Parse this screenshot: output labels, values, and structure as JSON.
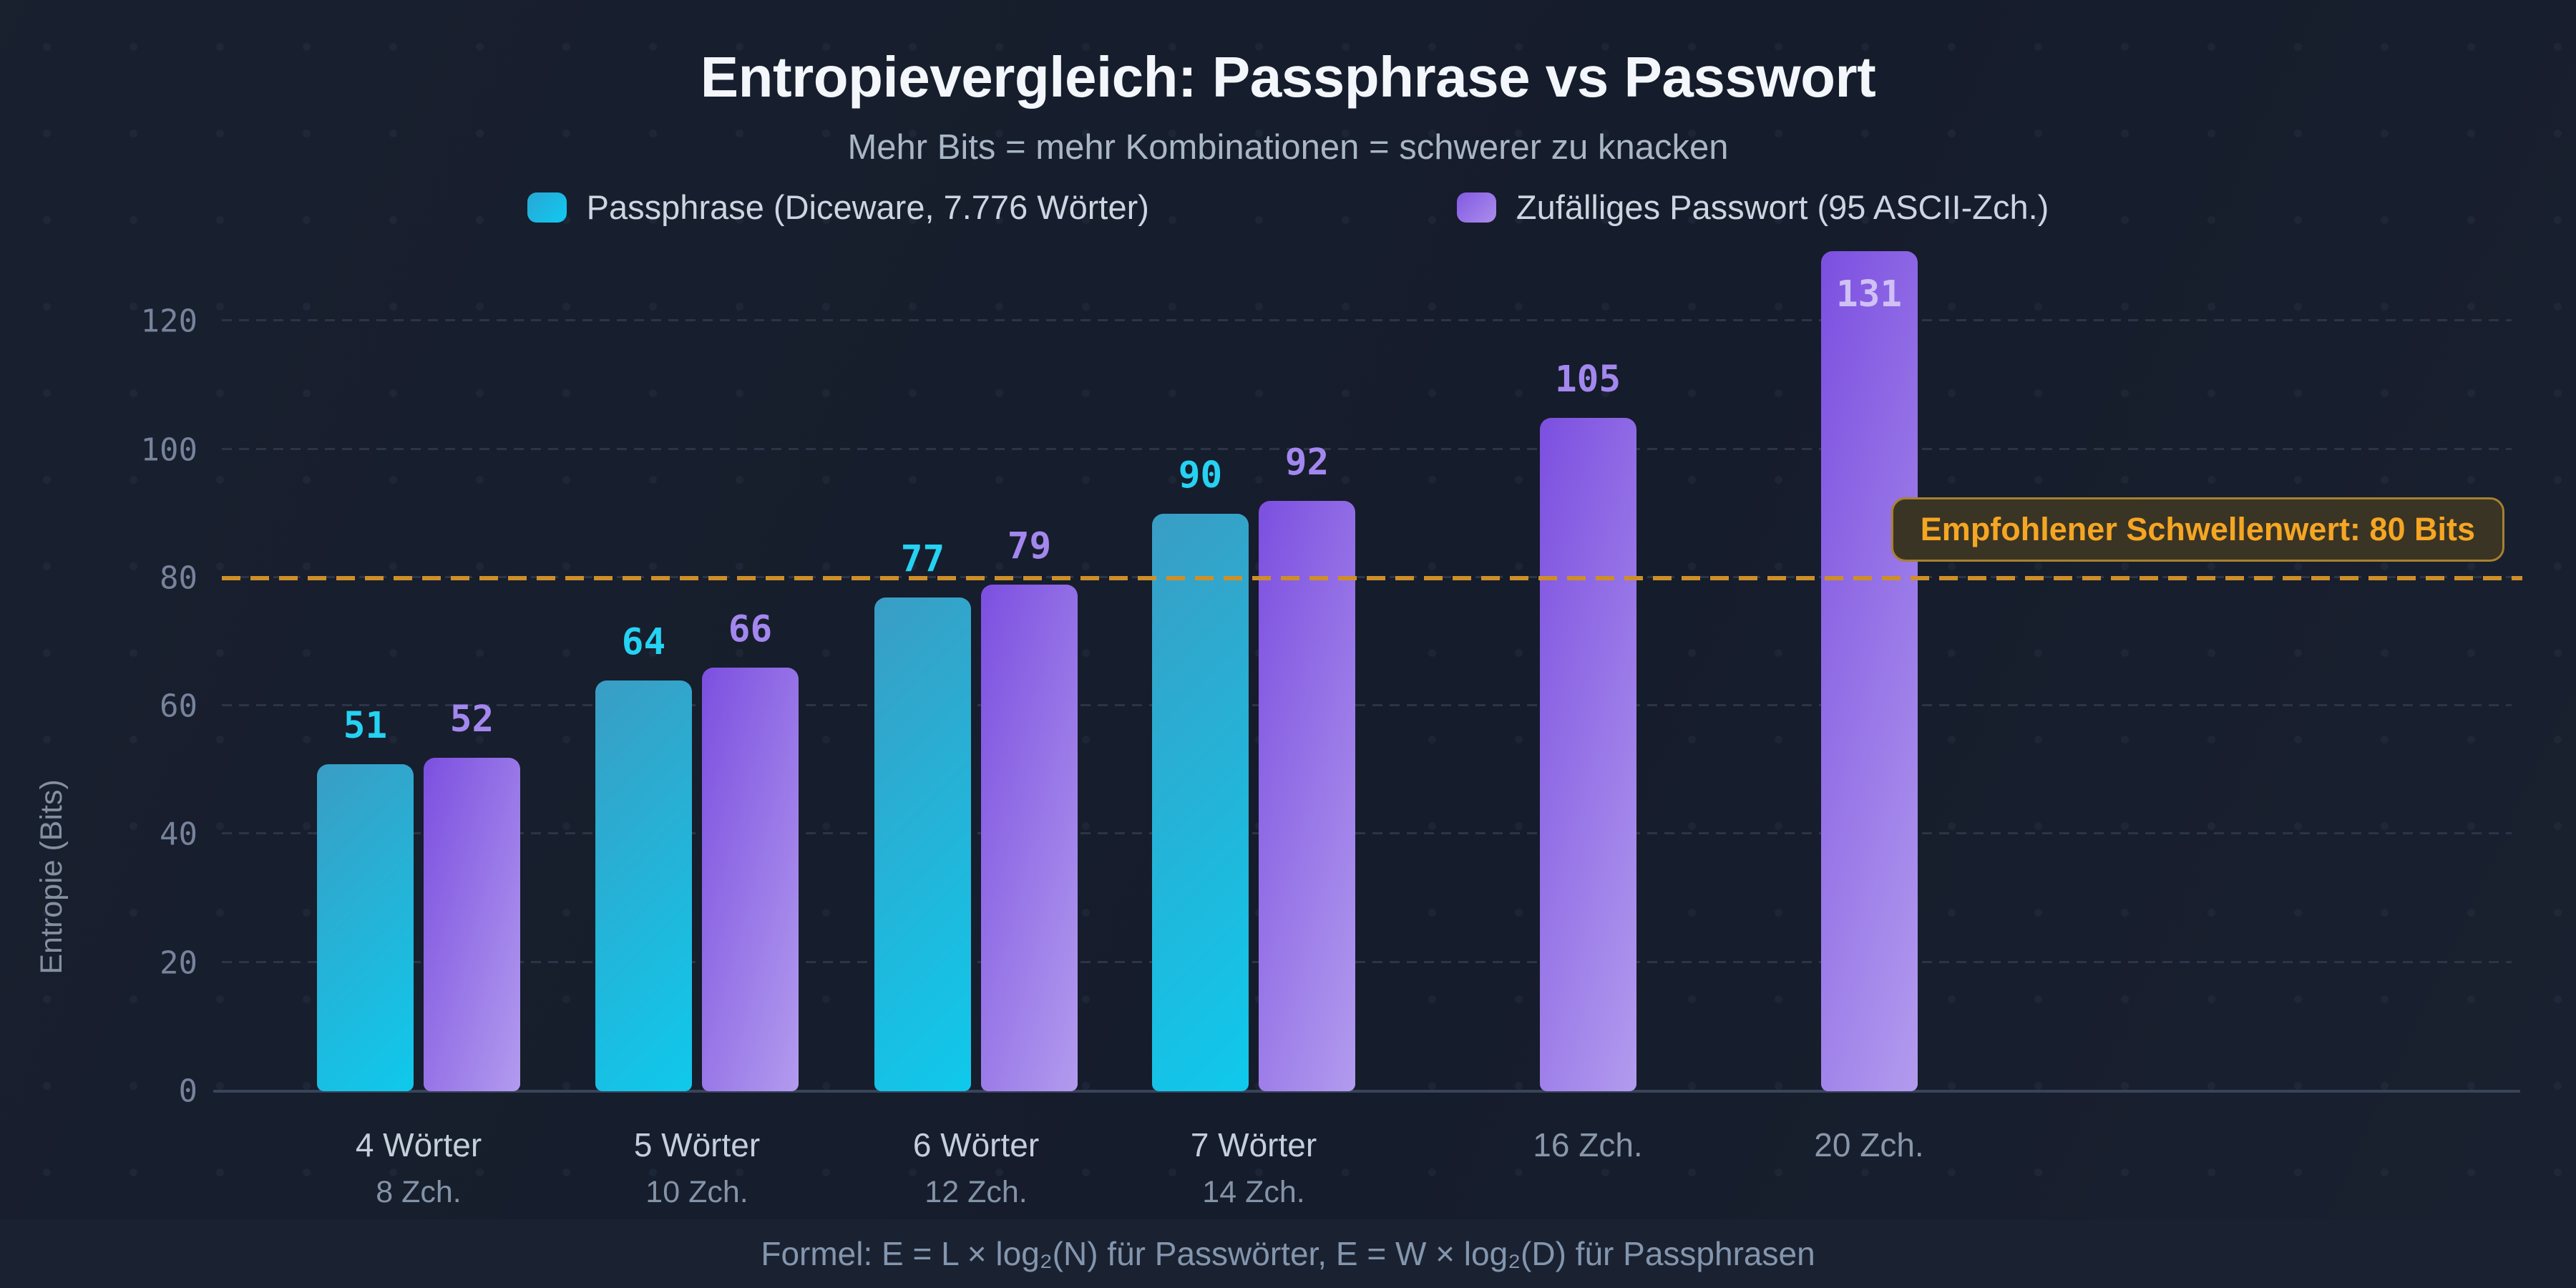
{
  "title": "Entropievergleich: Passphrase vs Passwort",
  "subtitle": "Mehr Bits = mehr Kombinationen = schwerer zu knacken",
  "legend": [
    {
      "label": "Passphrase (Diceware, 7.776 Wörter)",
      "series": "passphrase",
      "color": "#10c9f0"
    },
    {
      "label": "Zufälliges Passwort (95 ASCII-Zch.)",
      "series": "password",
      "color": "#9d7bea"
    }
  ],
  "yaxis": {
    "label": "Entropie (Bits)",
    "ticks": [
      0,
      20,
      40,
      60,
      80,
      100,
      120
    ]
  },
  "threshold": {
    "value": 80,
    "label": "Empfohlener Schwellenwert: 80 Bits",
    "color": "#cf8f28"
  },
  "footer": "Formel: E = L × log₂(N) für Passwörter, E = W × log₂(D) für Passphrasen",
  "chart_data": {
    "type": "bar",
    "title": "Entropievergleich: Passphrase vs Passwort",
    "subtitle": "Mehr Bits = mehr Kombinationen = schwerer zu knacken",
    "xlabel": "",
    "ylabel": "Entropie (Bits)",
    "ylim": [
      0,
      131
    ],
    "yticks": [
      0,
      20,
      40,
      60,
      80,
      100,
      120
    ],
    "grid": "dashed horizontal",
    "legend_position": "top",
    "threshold_line": {
      "value": 80,
      "label": "Empfohlener Schwellenwert: 80 Bits"
    },
    "categories": [
      {
        "label": "4 Wörter",
        "sublabel": "8 Zch."
      },
      {
        "label": "5 Wörter",
        "sublabel": "10 Zch."
      },
      {
        "label": "6 Wörter",
        "sublabel": "12 Zch."
      },
      {
        "label": "7 Wörter",
        "sublabel": "14 Zch."
      },
      {
        "label": "16 Zch.",
        "sublabel": ""
      },
      {
        "label": "20 Zch.",
        "sublabel": ""
      }
    ],
    "series": [
      {
        "name": "Passphrase (Diceware, 7.776 Wörter)",
        "values": [
          51,
          64,
          77,
          90,
          null,
          null
        ]
      },
      {
        "name": "Zufälliges Passwort (95 ASCII-Zch.)",
        "values": [
          52,
          66,
          79,
          92,
          105,
          131
        ]
      }
    ],
    "value_labels_inside": [
      [
        false,
        false,
        false,
        false,
        false,
        false
      ],
      [
        false,
        false,
        false,
        false,
        false,
        true
      ]
    ]
  }
}
